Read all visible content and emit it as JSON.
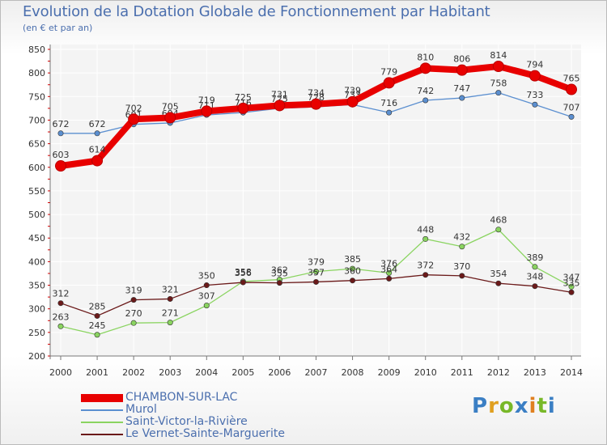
{
  "header": {
    "title": "Evolution de la Dotation Globale de Fonctionnement par Habitant",
    "subtitle": "(en € et par an)"
  },
  "brand": {
    "text": "Proxiti"
  },
  "chart_data": {
    "type": "line",
    "title": "Evolution de la Dotation Globale de Fonctionnement par Habitant",
    "subtitle": "(en € et par an)",
    "xlabel": "",
    "ylabel": "",
    "ylim": [
      200,
      850
    ],
    "yticks": [
      200,
      250,
      300,
      350,
      400,
      450,
      500,
      550,
      600,
      650,
      700,
      750,
      800,
      850
    ],
    "grid": true,
    "legend_position": "bottom-left",
    "categories": [
      "2000",
      "2001",
      "2002",
      "2003",
      "2004",
      "2005",
      "2006",
      "2007",
      "2008",
      "2009",
      "2010",
      "2011",
      "2012",
      "2013",
      "2014"
    ],
    "series": [
      {
        "name": "CHAMBON-SUR-LAC",
        "color": "#e80000",
        "values": [
          603,
          614,
          702,
          705,
          719,
          725,
          731,
          734,
          739,
          779,
          810,
          806,
          814,
          794,
          765
        ]
      },
      {
        "name": "Murol",
        "color": "#5b8fd0",
        "values": [
          672,
          672,
          691,
          694,
          711,
          716,
          725,
          728,
          733,
          716,
          742,
          747,
          758,
          733,
          707
        ]
      },
      {
        "name": "Saint-Victor-la-Rivière",
        "color": "#8ad460",
        "values": [
          263,
          245,
          270,
          271,
          307,
          358,
          362,
          379,
          385,
          376,
          448,
          432,
          468,
          389,
          347
        ]
      },
      {
        "name": "Le Vernet-Sainte-Marguerite",
        "color": "#6b1a1a",
        "values": [
          312,
          285,
          319,
          321,
          350,
          356,
          355,
          357,
          360,
          364,
          372,
          370,
          354,
          348,
          335
        ]
      }
    ]
  }
}
